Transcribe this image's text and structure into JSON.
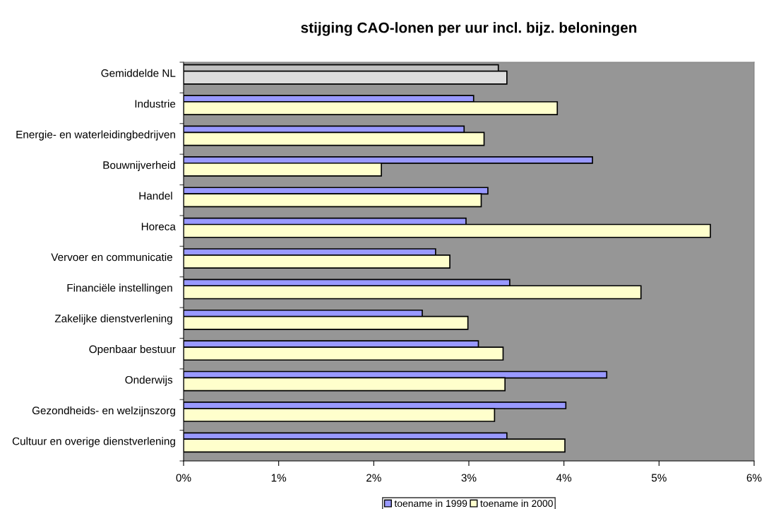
{
  "chart_data": {
    "type": "bar",
    "orientation": "horizontal",
    "title": "stijging CAO-lonen per uur incl. bijz. beloningen",
    "categories": [
      "Gemiddelde NL",
      "Industrie",
      "Energie- en waterleidingbedrijven",
      "Bouwnijverheid",
      "Handel ",
      "Horeca",
      "Vervoer en communicatie ",
      "Financiële instellingen ",
      "Zakelijke dienstverlening ",
      "Openbaar bestuur",
      "Onderwijs ",
      "Gezondheids- en welzijnszorg",
      "Cultuur en overige dienstverlening"
    ],
    "series": [
      {
        "name": "toename in 1999",
        "color": "#9999ff",
        "colors": [
          "#c0c0c0",
          "#9999ff",
          "#9999ff",
          "#9999ff",
          "#9999ff",
          "#9999ff",
          "#9999ff",
          "#9999ff",
          "#9999ff",
          "#9999ff",
          "#9999ff",
          "#9999ff",
          "#9999ff"
        ],
        "values": [
          3.31,
          3.05,
          2.95,
          4.3,
          3.2,
          2.97,
          2.65,
          3.43,
          2.51,
          3.1,
          4.45,
          4.02,
          3.4
        ]
      },
      {
        "name": "toename in 2000",
        "color": "#ffffcc",
        "colors": [
          "#dddddd",
          "#ffffcc",
          "#ffffcc",
          "#ffffcc",
          "#ffffcc",
          "#ffffcc",
          "#ffffcc",
          "#ffffcc",
          "#ffffcc",
          "#ffffcc",
          "#ffffcc",
          "#ffffcc",
          "#ffffcc"
        ],
        "values": [
          3.4,
          3.93,
          3.16,
          2.08,
          3.13,
          5.54,
          2.8,
          4.81,
          2.99,
          3.36,
          3.38,
          3.27,
          4.01
        ]
      }
    ],
    "xlim": [
      0,
      6
    ],
    "xticks": [
      {
        "value": 0,
        "label": "0%"
      },
      {
        "value": 1,
        "label": "1%"
      },
      {
        "value": 2,
        "label": "2%"
      },
      {
        "value": 3,
        "label": "3%"
      },
      {
        "value": 4,
        "label": "4%"
      },
      {
        "value": 5,
        "label": "5%"
      },
      {
        "value": 6,
        "label": "6%"
      }
    ],
    "grid": false,
    "legend": "bottom"
  }
}
